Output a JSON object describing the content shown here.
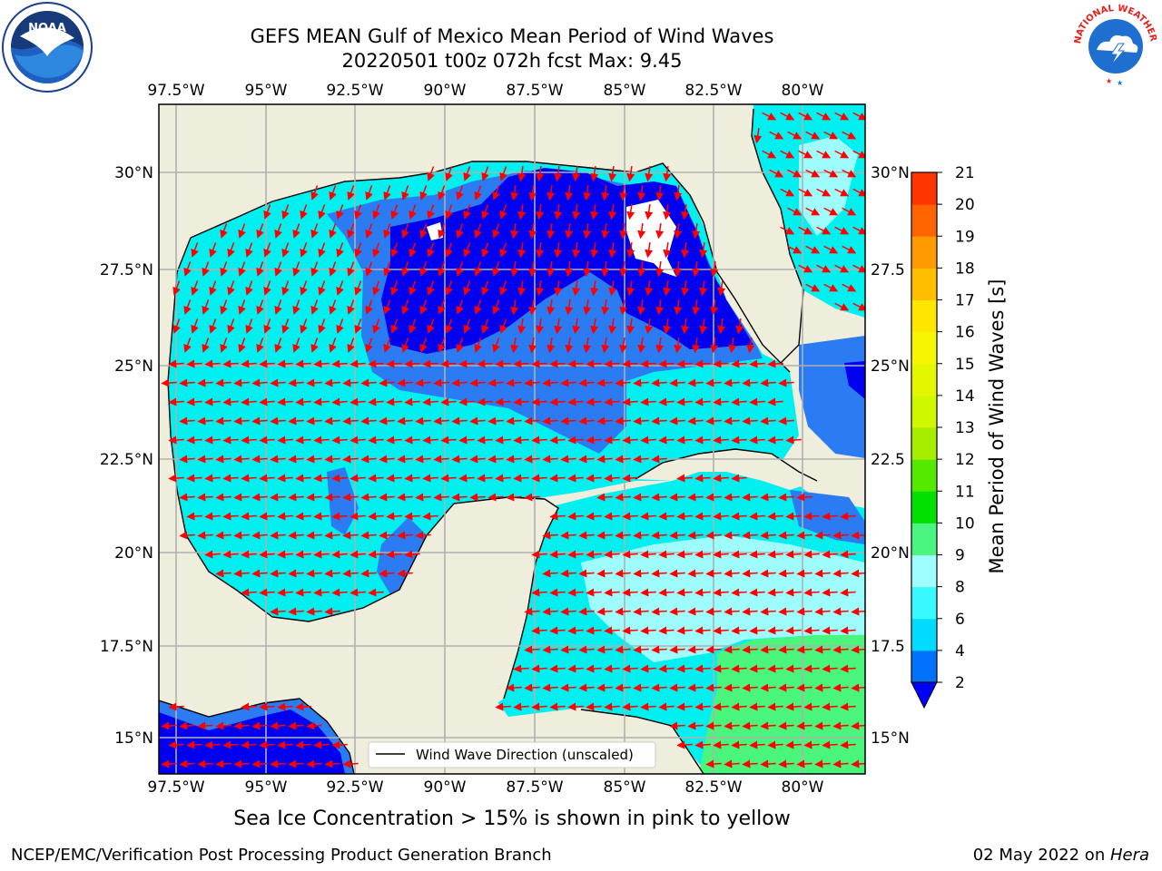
{
  "header": {
    "title_line1": "GEFS MEAN Gulf of Mexico Mean Period of Wind Waves",
    "title_line2": "20220501 t00z 072h fcst   Max: 9.45"
  },
  "map": {
    "lon_ticks": [
      "97.5°W",
      "95°W",
      "92.5°W",
      "90°W",
      "87.5°W",
      "85°W",
      "82.5°W",
      "80°W"
    ],
    "lat_ticks_left": [
      "30°N",
      "27.5°N",
      "25°N",
      "22.5°N",
      "20°N",
      "17.5°N",
      "15°N"
    ],
    "lat_ticks_right": [
      "30°N",
      "27.5",
      "25°N",
      "22.5",
      "20°N",
      "17.5",
      "15°N"
    ],
    "legend_label": "Wind Wave Direction (unscaled)",
    "colors": {
      "land": "#efeedc",
      "ocean_band_2_4": "#0000f0",
      "ocean_band_4_6": "#2b7bf2",
      "ocean_band_6_8": "#00f0f0",
      "ocean_band_8_9": "#9ffcfc",
      "ocean_band_9_10": "#4af57c",
      "arrow": "#ff0000",
      "grid": "#b0b0b0"
    }
  },
  "colorbar": {
    "label": "Mean Period of Wind Waves [s]",
    "ticks": [
      "2",
      "4",
      "6",
      "8",
      "9",
      "10",
      "11",
      "12",
      "13",
      "14",
      "15",
      "16",
      "17",
      "18",
      "19",
      "20",
      "21"
    ],
    "colors": [
      "#0072fe",
      "#00dcff",
      "#37f9ff",
      "#9efdfd",
      "#4cf580",
      "#00e100",
      "#56e900",
      "#a6ed00",
      "#cff800",
      "#e4f600",
      "#f6f600",
      "#ffe600",
      "#ffbf00",
      "#ff9a00",
      "#ff6400",
      "#ff3500",
      "#ff0000"
    ],
    "extend_color": "#0000ff"
  },
  "footer": {
    "ice_note": "Sea Ice Concentration > 15% is shown in pink to yellow",
    "branch": "NCEP/EMC/Verification Post Processing Product Generation Branch",
    "date": "02 May 2022 on ",
    "machine": "Hera"
  },
  "logos": {
    "left": "noaa-logo",
    "right": "nws-logo",
    "left_text": "NOAA",
    "right_text": "NATIONAL WEATHER SERVICE"
  }
}
